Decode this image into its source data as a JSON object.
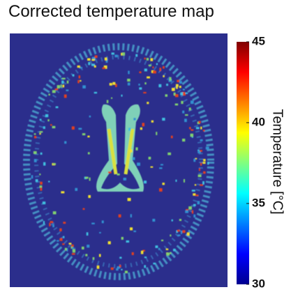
{
  "chart_data": {
    "type": "heatmap",
    "title": "Corrected temperature map",
    "colorbar": {
      "label": "Temperature [°C]",
      "lim": [
        30,
        45
      ],
      "ticks": [
        30,
        35,
        40,
        45
      ],
      "colormap": "jet"
    }
  }
}
